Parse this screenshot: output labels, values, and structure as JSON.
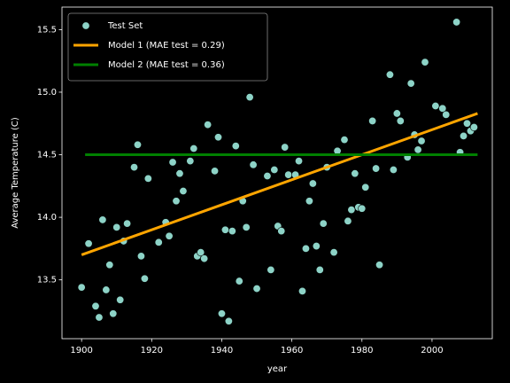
{
  "chart_data": {
    "type": "scatter",
    "xlabel": "year",
    "ylabel": "Average Temperature (C)",
    "xlim": [
      1894.4,
      2017.2
    ],
    "ylim": [
      13.03,
      15.68
    ],
    "xticks": [
      1900,
      1920,
      1940,
      1960,
      1980,
      2000
    ],
    "yticks": [
      13.5,
      {
        "value": 14,
        "label": "14.0"
      },
      14.5,
      {
        "value": 15,
        "label": "15.0"
      },
      15.5
    ],
    "legend": "upper left",
    "series": [
      {
        "name": "Test Set",
        "type": "scatter",
        "color": "#8dd3c7",
        "x": [
          1900,
          1902,
          1904,
          1905,
          1906,
          1907,
          1908,
          1909,
          1910,
          1911,
          1912,
          1913,
          1915,
          1916,
          1917,
          1918,
          1919,
          1922,
          1924,
          1925,
          1926,
          1927,
          1928,
          1929,
          1931,
          1932,
          1933,
          1934,
          1935,
          1936,
          1938,
          1939,
          1940,
          1941,
          1942,
          1943,
          1944,
          1945,
          1946,
          1947,
          1948,
          1949,
          1950,
          1953,
          1954,
          1955,
          1956,
          1957,
          1958,
          1959,
          1961,
          1962,
          1963,
          1964,
          1965,
          1966,
          1967,
          1968,
          1969,
          1970,
          1972,
          1973,
          1975,
          1976,
          1977,
          1978,
          1979,
          1980,
          1981,
          1983,
          1984,
          1985,
          1988,
          1989,
          1990,
          1991,
          1993,
          1994,
          1995,
          1996,
          1997,
          1998,
          2001,
          2003,
          2004,
          2007,
          2008,
          2009,
          2010,
          2011,
          2012
        ],
        "values": [
          13.44,
          13.79,
          13.29,
          13.2,
          13.98,
          13.42,
          13.62,
          13.23,
          13.92,
          13.34,
          13.81,
          13.95,
          14.4,
          14.58,
          13.69,
          13.51,
          14.31,
          13.8,
          13.96,
          13.85,
          14.44,
          14.13,
          14.35,
          14.21,
          14.45,
          14.55,
          13.69,
          13.72,
          13.67,
          14.74,
          14.37,
          14.64,
          13.23,
          13.9,
          13.17,
          13.89,
          14.57,
          13.49,
          14.13,
          13.92,
          14.96,
          14.42,
          13.43,
          14.33,
          13.58,
          14.38,
          13.93,
          13.89,
          14.56,
          14.34,
          14.34,
          14.45,
          13.41,
          13.75,
          14.13,
          14.27,
          13.77,
          13.58,
          13.95,
          14.4,
          13.72,
          14.53,
          14.62,
          13.97,
          14.06,
          14.35,
          14.08,
          14.07,
          14.24,
          14.77,
          14.39,
          13.62,
          15.14,
          14.38,
          14.83,
          14.77,
          14.48,
          15.07,
          14.66,
          14.54,
          14.61,
          15.24,
          14.89,
          14.87,
          14.82,
          15.56,
          14.52,
          14.65,
          14.75,
          14.69,
          14.72
        ]
      },
      {
        "name": "Model 1 (MAE test = 0.29)",
        "type": "line",
        "color": "#ffa500",
        "x": [
          1900,
          2013
        ],
        "values": [
          13.7,
          14.83
        ]
      },
      {
        "name": "Model 2 (MAE test = 0.36)",
        "type": "line",
        "color": "#008000",
        "x": [
          1901,
          2013
        ],
        "values": [
          14.5,
          14.5
        ]
      }
    ]
  }
}
